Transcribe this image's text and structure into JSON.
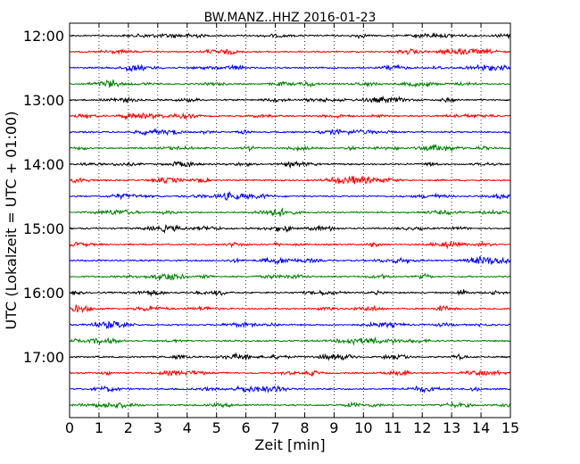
{
  "chart_data": {
    "type": "line",
    "title": "BW.MANZ..HHZ 2016-01-23",
    "xlabel": "Zeit  [min]",
    "ylabel": "UTC (Lokalzeit = UTC + 01:00)",
    "xlim": [
      0,
      15
    ],
    "x_ticks": [
      0,
      1,
      2,
      3,
      4,
      5,
      6,
      7,
      8,
      9,
      10,
      11,
      12,
      13,
      14,
      15
    ],
    "x_tick_labels": [
      "0",
      "1",
      "2",
      "3",
      "4",
      "5",
      "6",
      "7",
      "8",
      "9",
      "10",
      "11",
      "12",
      "13",
      "14",
      "15"
    ],
    "y_tick_labels": [
      "12:00",
      "13:00",
      "14:00",
      "15:00",
      "16:00",
      "17:00"
    ],
    "vertical_grid": "dotted",
    "trace_colors": [
      "#000000",
      "#ff0000",
      "#0000ff",
      "#008000"
    ],
    "series": [
      {
        "start": "12:00"
      },
      {
        "start": "12:15"
      },
      {
        "start": "12:30"
      },
      {
        "start": "12:45"
      },
      {
        "start": "13:00"
      },
      {
        "start": "13:15"
      },
      {
        "start": "13:30"
      },
      {
        "start": "13:45"
      },
      {
        "start": "14:00"
      },
      {
        "start": "14:15"
      },
      {
        "start": "14:30"
      },
      {
        "start": "14:45"
      },
      {
        "start": "15:00"
      },
      {
        "start": "15:15"
      },
      {
        "start": "15:30"
      },
      {
        "start": "15:45"
      },
      {
        "start": "16:00"
      },
      {
        "start": "16:15"
      },
      {
        "start": "16:30"
      },
      {
        "start": "16:45"
      },
      {
        "start": "17:00"
      },
      {
        "start": "17:15"
      },
      {
        "start": "17:30"
      },
      {
        "start": "17:45"
      }
    ]
  }
}
